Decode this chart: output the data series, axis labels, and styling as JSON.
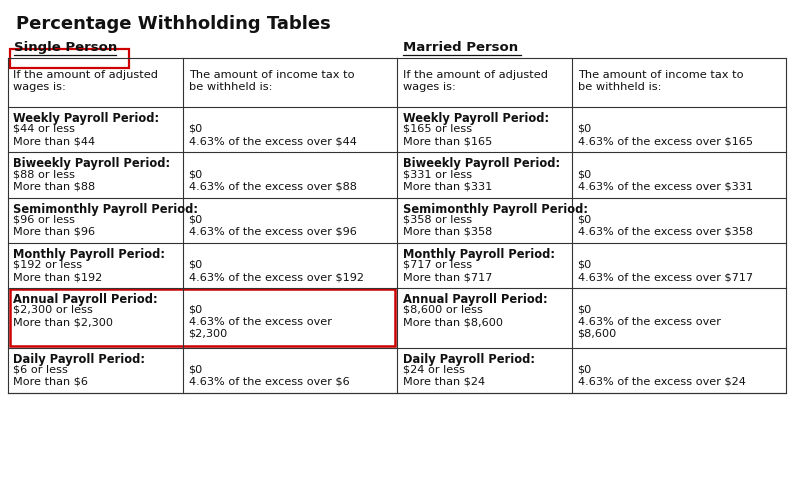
{
  "title": "Percentage Withholding Tables",
  "bg_color": "#ffffff",
  "border_color": "#333333",
  "red_color": "#cc0000",
  "header_single": "Single Person",
  "header_married": "Married Person",
  "col_headers": [
    "If the amount of adjusted\nwages is:",
    "The amount of income tax to\nbe withheld is:",
    "If the amount of adjusted\nwages is:",
    "The amount of income tax to\nbe withheld is:"
  ],
  "periods": [
    {
      "label": "Weekly Payroll Period:",
      "single": [
        [
          "$44 or less",
          "$0"
        ],
        [
          "More than $44",
          "4.63% of the excess over $44"
        ]
      ],
      "married": [
        [
          "$165 or less",
          "$0"
        ],
        [
          "More than $165",
          "4.63% of the excess over $165"
        ]
      ],
      "highlight": false
    },
    {
      "label": "Biweekly Payroll Period:",
      "single": [
        [
          "$88 or less",
          "$0"
        ],
        [
          "More than $88",
          "4.63% of the excess over $88"
        ]
      ],
      "married": [
        [
          "$331 or less",
          "$0"
        ],
        [
          "More than $331",
          "4.63% of the excess over $331"
        ]
      ],
      "highlight": false
    },
    {
      "label": "Semimonthly Payroll Period:",
      "single": [
        [
          "$96 or less",
          "$0"
        ],
        [
          "More than $96",
          "4.63% of the excess over $96"
        ]
      ],
      "married": [
        [
          "$358 or less",
          "$0"
        ],
        [
          "More than $358",
          "4.63% of the excess over $358"
        ]
      ],
      "highlight": false
    },
    {
      "label": "Monthly Payroll Period:",
      "single": [
        [
          "$192 or less",
          "$0"
        ],
        [
          "More than $192",
          "4.63% of the excess over $192"
        ]
      ],
      "married": [
        [
          "$717 or less",
          "$0"
        ],
        [
          "More than $717",
          "4.63% of the excess over $717"
        ]
      ],
      "highlight": false
    },
    {
      "label": "Annual Payroll Period:",
      "single": [
        [
          "$2,300 or less",
          "$0"
        ],
        [
          "More than $2,300",
          "4.63% of the excess over\n$2,300"
        ]
      ],
      "married": [
        [
          "$8,600 or less",
          "$0"
        ],
        [
          "More than $8,600",
          "4.63% of the excess over\n$8,600"
        ]
      ],
      "highlight": true
    },
    {
      "label": "Daily Payroll Period:",
      "single": [
        [
          "$6 or less",
          "$0"
        ],
        [
          "More than $6",
          "4.63% of the excess over $6"
        ]
      ],
      "married": [
        [
          "$24 or less",
          "$0"
        ],
        [
          "More than $24",
          "4.63% of the excess over $24"
        ]
      ],
      "highlight": false
    }
  ],
  "figsize": [
    8.0,
    5.03
  ],
  "dpi": 100
}
